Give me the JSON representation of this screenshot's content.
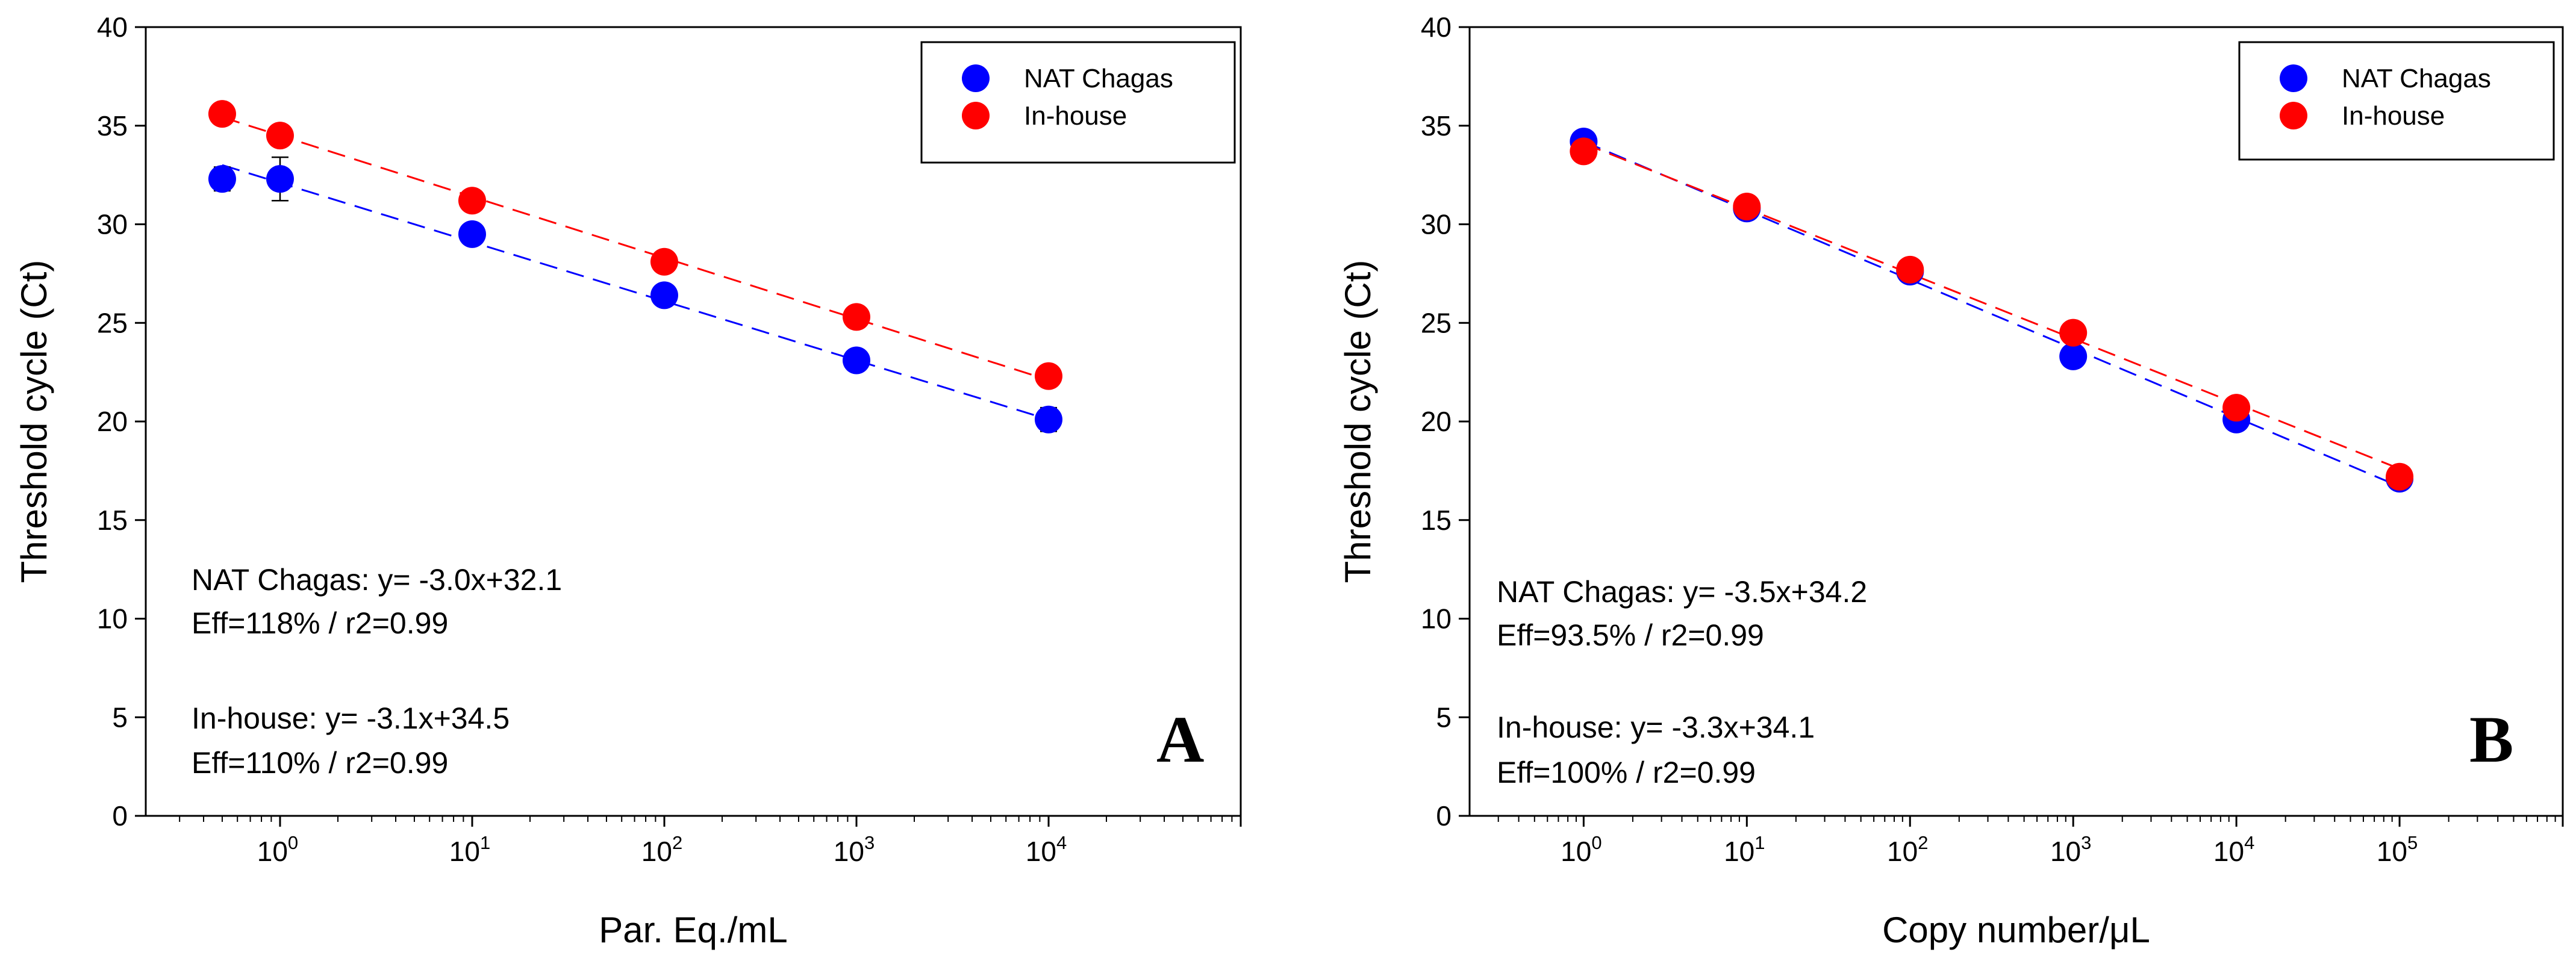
{
  "chart_data": [
    {
      "type": "scatter",
      "panel_label": "A",
      "xlabel": "Par. Eq./mL",
      "ylabel": "Threshold cycle (Ct)",
      "xscale": "log",
      "xlim": [
        0.2,
        100000
      ],
      "ylim": [
        0,
        40
      ],
      "yticks": [
        0,
        5,
        10,
        15,
        20,
        25,
        30,
        35,
        40
      ],
      "xticks": [
        {
          "value": 1,
          "base": "10",
          "exp": "0"
        },
        {
          "value": 10,
          "base": "10",
          "exp": "1"
        },
        {
          "value": 100,
          "base": "10",
          "exp": "2"
        },
        {
          "value": 1000,
          "base": "10",
          "exp": "3"
        },
        {
          "value": 10000,
          "base": "10",
          "exp": "4"
        }
      ],
      "legend_position": "top-right",
      "grid": false,
      "series": [
        {
          "name": "NAT Chagas",
          "color": "#0000ff",
          "x": [
            0.5,
            1,
            10,
            100,
            1000,
            10000
          ],
          "y": [
            32.3,
            32.3,
            29.5,
            26.4,
            23.1,
            20.1
          ],
          "yerr": [
            0.6,
            1.1,
            0.3,
            0.5,
            0.3,
            0.6
          ],
          "fit": {
            "slope": -3.0,
            "intercept": 32.1
          },
          "equation": "NAT Chagas: y= -3.0x+32.1",
          "efficiency": "Eff=118% / r2=0.99"
        },
        {
          "name": "In-house",
          "color": "#ff0000",
          "x": [
            0.5,
            1,
            10,
            100,
            1000,
            10000
          ],
          "y": [
            35.6,
            34.5,
            31.2,
            28.1,
            25.3,
            22.3
          ],
          "yerr": [
            0.2,
            0.2,
            0.3,
            0.2,
            0.2,
            0.2
          ],
          "fit": {
            "slope": -3.1,
            "intercept": 34.5
          },
          "equation": "In-house: y= -3.1x+34.5",
          "efficiency": "Eff=110% / r2=0.99"
        }
      ]
    },
    {
      "type": "scatter",
      "panel_label": "B",
      "xlabel": "Copy number/μL",
      "ylabel": "Threshold cycle (Ct)",
      "xscale": "log",
      "xlim": [
        0.2,
        1000000
      ],
      "ylim": [
        0,
        40
      ],
      "yticks": [
        0,
        5,
        10,
        15,
        20,
        25,
        30,
        35,
        40
      ],
      "xticks": [
        {
          "value": 1,
          "base": "10",
          "exp": "0"
        },
        {
          "value": 10,
          "base": "10",
          "exp": "1"
        },
        {
          "value": 100,
          "base": "10",
          "exp": "2"
        },
        {
          "value": 1000,
          "base": "10",
          "exp": "3"
        },
        {
          "value": 10000,
          "base": "10",
          "exp": "4"
        },
        {
          "value": 100000,
          "base": "10",
          "exp": "5"
        }
      ],
      "legend_position": "top-right",
      "grid": false,
      "series": [
        {
          "name": "NAT Chagas",
          "color": "#0000ff",
          "x": [
            1,
            10,
            100,
            1000,
            10000,
            100000
          ],
          "y": [
            34.2,
            30.8,
            27.6,
            23.3,
            20.1,
            17.1
          ],
          "yerr": [
            0.2,
            0.2,
            0.2,
            0.3,
            0.2,
            0.2
          ],
          "fit": {
            "slope": -3.5,
            "intercept": 34.2
          },
          "equation": "NAT Chagas: y= -3.5x+34.2",
          "efficiency": "Eff=93.5% / r2=0.99"
        },
        {
          "name": "In-house",
          "color": "#ff0000",
          "x": [
            1,
            10,
            100,
            1000,
            10000,
            100000
          ],
          "y": [
            33.7,
            30.9,
            27.7,
            24.5,
            20.7,
            17.2
          ],
          "yerr": [
            0.2,
            0.2,
            0.2,
            0.2,
            0.2,
            0.2
          ],
          "fit": {
            "slope": -3.3,
            "intercept": 34.1
          },
          "equation": "In-house: y= -3.3x+34.1",
          "efficiency": "Eff=100% / r2=0.99"
        }
      ]
    }
  ]
}
